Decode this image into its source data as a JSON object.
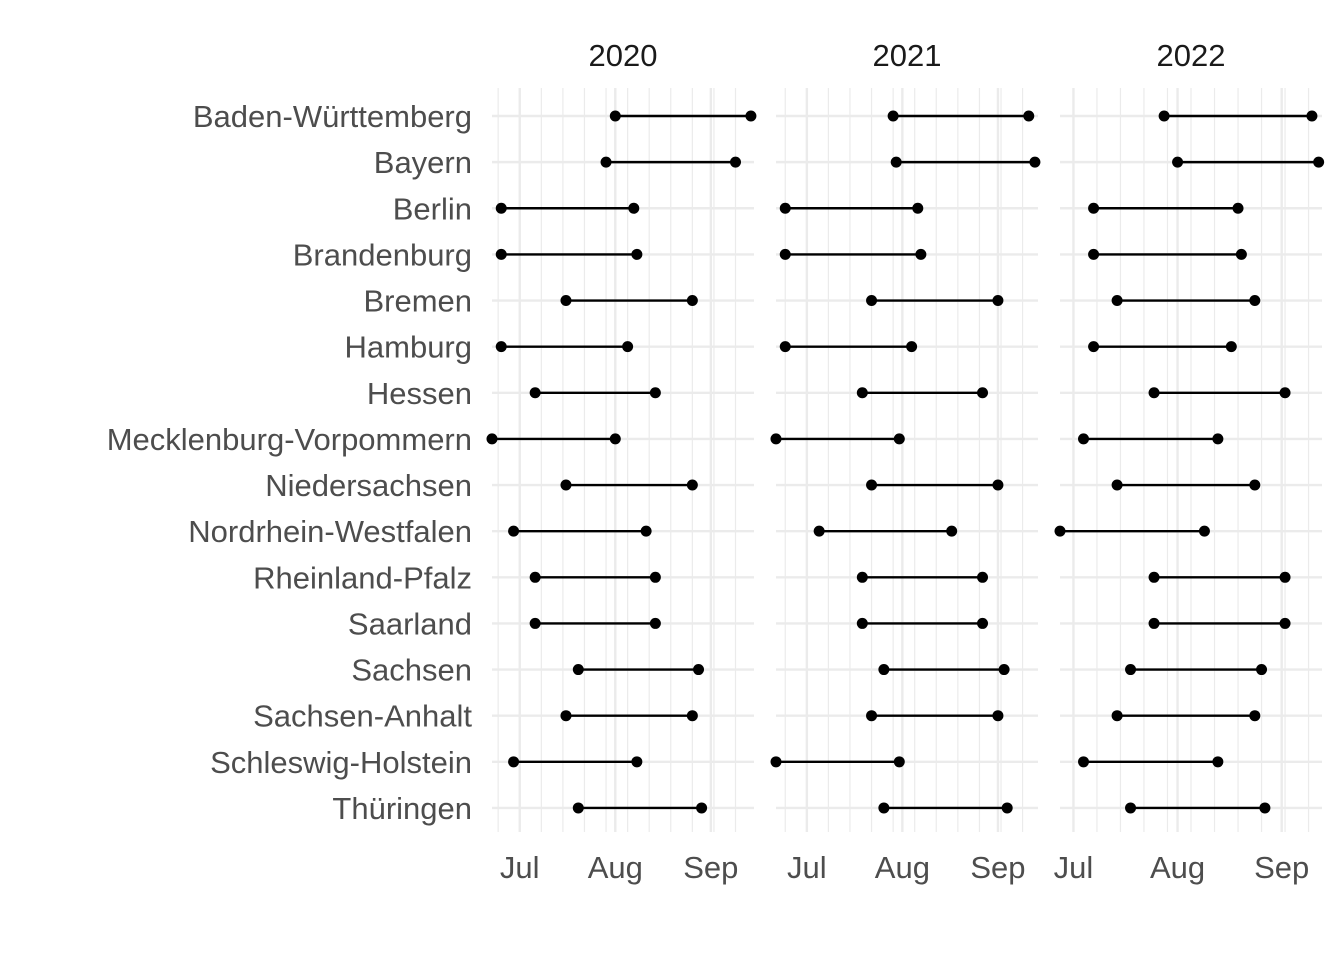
{
  "chart_data": {
    "type": "dumbbell",
    "panels": [
      {
        "title": "2020",
        "x_ticks": [
          {
            "label": "Jul",
            "date": "2020-07-01"
          },
          {
            "label": "Aug",
            "date": "2020-08-01"
          },
          {
            "label": "Sep",
            "date": "2020-09-01"
          }
        ],
        "xlim": [
          "2020-06-22",
          "2020-09-15"
        ],
        "rows": [
          {
            "state": "Baden-Württemberg",
            "start": "2020-08-01",
            "end": "2020-09-14"
          },
          {
            "state": "Bayern",
            "start": "2020-07-29",
            "end": "2020-09-09"
          },
          {
            "state": "Berlin",
            "start": "2020-06-25",
            "end": "2020-08-07"
          },
          {
            "state": "Brandenburg",
            "start": "2020-06-25",
            "end": "2020-08-08"
          },
          {
            "state": "Bremen",
            "start": "2020-07-16",
            "end": "2020-08-26"
          },
          {
            "state": "Hamburg",
            "start": "2020-06-25",
            "end": "2020-08-05"
          },
          {
            "state": "Hessen",
            "start": "2020-07-06",
            "end": "2020-08-14"
          },
          {
            "state": "Mecklenburg-Vorpommern",
            "start": "2020-06-22",
            "end": "2020-08-01"
          },
          {
            "state": "Niedersachsen",
            "start": "2020-07-16",
            "end": "2020-08-26"
          },
          {
            "state": "Nordrhein-Westfalen",
            "start": "2020-06-29",
            "end": "2020-08-11"
          },
          {
            "state": "Rheinland-Pfalz",
            "start": "2020-07-06",
            "end": "2020-08-14"
          },
          {
            "state": "Saarland",
            "start": "2020-07-06",
            "end": "2020-08-14"
          },
          {
            "state": "Sachsen",
            "start": "2020-07-20",
            "end": "2020-08-28"
          },
          {
            "state": "Sachsen-Anhalt",
            "start": "2020-07-16",
            "end": "2020-08-26"
          },
          {
            "state": "Schleswig-Holstein",
            "start": "2020-06-29",
            "end": "2020-08-08"
          },
          {
            "state": "Thüringen",
            "start": "2020-07-20",
            "end": "2020-08-29"
          }
        ]
      },
      {
        "title": "2021",
        "x_ticks": [
          {
            "label": "Jul",
            "date": "2021-07-01"
          },
          {
            "label": "Aug",
            "date": "2021-08-01"
          },
          {
            "label": "Sep",
            "date": "2021-09-01"
          }
        ],
        "xlim": [
          "2021-06-21",
          "2021-09-14"
        ],
        "rows": [
          {
            "state": "Baden-Württemberg",
            "start": "2021-07-29",
            "end": "2021-09-11"
          },
          {
            "state": "Bayern",
            "start": "2021-07-30",
            "end": "2021-09-13"
          },
          {
            "state": "Berlin",
            "start": "2021-06-24",
            "end": "2021-08-06"
          },
          {
            "state": "Brandenburg",
            "start": "2021-06-24",
            "end": "2021-08-07"
          },
          {
            "state": "Bremen",
            "start": "2021-07-22",
            "end": "2021-09-01"
          },
          {
            "state": "Hamburg",
            "start": "2021-06-24",
            "end": "2021-08-04"
          },
          {
            "state": "Hessen",
            "start": "2021-07-19",
            "end": "2021-08-27"
          },
          {
            "state": "Mecklenburg-Vorpommern",
            "start": "2021-06-21",
            "end": "2021-07-31"
          },
          {
            "state": "Niedersachsen",
            "start": "2021-07-22",
            "end": "2021-09-01"
          },
          {
            "state": "Nordrhein-Westfalen",
            "start": "2021-07-05",
            "end": "2021-08-17"
          },
          {
            "state": "Rheinland-Pfalz",
            "start": "2021-07-19",
            "end": "2021-08-27"
          },
          {
            "state": "Saarland",
            "start": "2021-07-19",
            "end": "2021-08-27"
          },
          {
            "state": "Sachsen",
            "start": "2021-07-26",
            "end": "2021-09-03"
          },
          {
            "state": "Sachsen-Anhalt",
            "start": "2021-07-22",
            "end": "2021-09-01"
          },
          {
            "state": "Schleswig-Holstein",
            "start": "2021-06-21",
            "end": "2021-07-31"
          },
          {
            "state": "Thüringen",
            "start": "2021-07-26",
            "end": "2021-09-04"
          }
        ]
      },
      {
        "title": "2022",
        "x_ticks": [
          {
            "label": "Jul",
            "date": "2022-07-01"
          },
          {
            "label": "Aug",
            "date": "2022-08-01"
          },
          {
            "label": "Sep",
            "date": "2022-09-01"
          }
        ],
        "xlim": [
          "2022-06-27",
          "2022-09-13"
        ],
        "rows": [
          {
            "state": "Baden-Württemberg",
            "start": "2022-07-28",
            "end": "2022-09-10"
          },
          {
            "state": "Bayern",
            "start": "2022-08-01",
            "end": "2022-09-12"
          },
          {
            "state": "Berlin",
            "start": "2022-07-07",
            "end": "2022-08-19"
          },
          {
            "state": "Brandenburg",
            "start": "2022-07-07",
            "end": "2022-08-20"
          },
          {
            "state": "Bremen",
            "start": "2022-07-14",
            "end": "2022-08-24"
          },
          {
            "state": "Hamburg",
            "start": "2022-07-07",
            "end": "2022-08-17"
          },
          {
            "state": "Hessen",
            "start": "2022-07-25",
            "end": "2022-09-02"
          },
          {
            "state": "Mecklenburg-Vorpommern",
            "start": "2022-07-04",
            "end": "2022-08-13"
          },
          {
            "state": "Niedersachsen",
            "start": "2022-07-14",
            "end": "2022-08-24"
          },
          {
            "state": "Nordrhein-Westfalen",
            "start": "2022-06-27",
            "end": "2022-08-09"
          },
          {
            "state": "Rheinland-Pfalz",
            "start": "2022-07-25",
            "end": "2022-09-02"
          },
          {
            "state": "Saarland",
            "start": "2022-07-25",
            "end": "2022-09-02"
          },
          {
            "state": "Sachsen",
            "start": "2022-07-18",
            "end": "2022-08-26"
          },
          {
            "state": "Sachsen-Anhalt",
            "start": "2022-07-14",
            "end": "2022-08-24"
          },
          {
            "state": "Schleswig-Holstein",
            "start": "2022-07-04",
            "end": "2022-08-13"
          },
          {
            "state": "Thüringen",
            "start": "2022-07-18",
            "end": "2022-08-27"
          }
        ]
      }
    ],
    "grid": true,
    "legend": "none"
  }
}
